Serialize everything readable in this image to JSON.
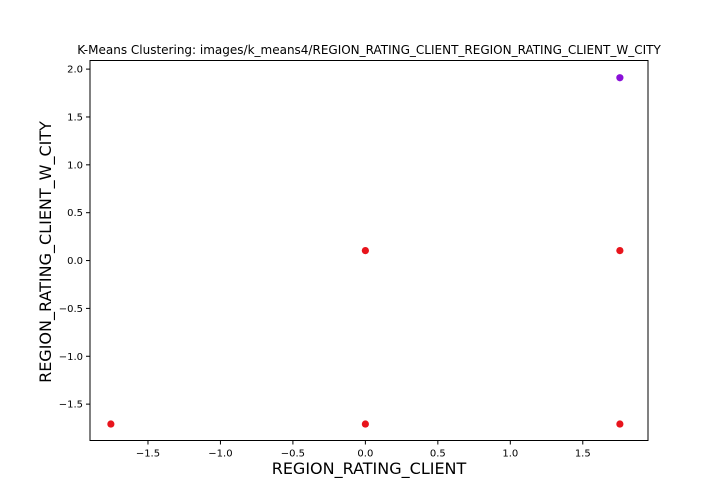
{
  "chart_data": {
    "type": "scatter",
    "title": "K-Means Clustering: images/k_means4/REGION_RATING_CLIENT_REGION_RATING_CLIENT_W_CITY",
    "xlabel": "REGION_RATING_CLIENT",
    "ylabel": "REGION_RATING_CLIENT_W_CITY",
    "xlim": [
      -1.9,
      1.95
    ],
    "ylim": [
      -1.88,
      2.09
    ],
    "xticks": [
      -1.5,
      -1.0,
      -0.5,
      0.0,
      0.5,
      1.0,
      1.5
    ],
    "xtick_labels": [
      "−1.5",
      "−1.0",
      "−0.5",
      "0.0",
      "0.5",
      "1.0",
      "1.5"
    ],
    "yticks": [
      -1.5,
      -1.0,
      -0.5,
      0.0,
      0.5,
      1.0,
      1.5,
      2.0
    ],
    "ytick_labels": [
      "−1.5",
      "−1.0",
      "−0.5",
      "0.0",
      "0.5",
      "1.0",
      "1.5",
      "2.0"
    ],
    "grid": false,
    "series": [
      {
        "color": "#e8141c",
        "points": [
          {
            "x": -1.756,
            "y": -1.708
          },
          {
            "x": 0.0,
            "y": -1.708
          },
          {
            "x": 1.756,
            "y": -1.708
          },
          {
            "x": 0.0,
            "y": 0.104
          },
          {
            "x": 1.756,
            "y": 0.104
          }
        ]
      },
      {
        "color": "#8a10d8",
        "points": [
          {
            "x": 1.756,
            "y": 1.91
          }
        ]
      }
    ]
  }
}
